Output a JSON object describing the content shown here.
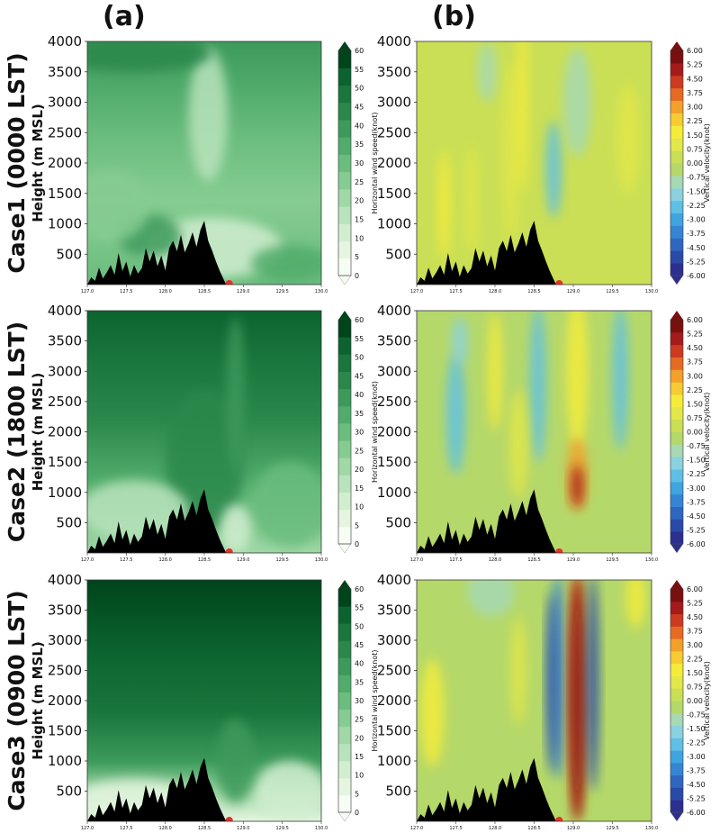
{
  "chart_data": {
    "type": "filled-contour",
    "panel_titles": [
      "(a)",
      "(b)"
    ],
    "row_labels": [
      "Case1 (0000 LST)",
      "Case2 (1800 LST)",
      "Case3 (0900 LST)"
    ],
    "ylabel": "Height (m MSL)",
    "yticks": [
      500,
      1000,
      1500,
      2000,
      2500,
      3000,
      3500,
      4000
    ],
    "ylim": [
      0,
      4000
    ],
    "xticks": [
      "127.0",
      "127.5",
      "128.0",
      "128.5",
      "129.0",
      "129.5",
      "130.0"
    ],
    "xlim": [
      127.0,
      130.0
    ],
    "colorbar_a": {
      "label": "Horizontal wind speed(knot)",
      "ticks": [
        "0",
        "5",
        "10",
        "15",
        "20",
        "25",
        "30",
        "35",
        "40",
        "45",
        "50",
        "55",
        "60"
      ]
    },
    "colorbar_b": {
      "label": "Vertical velocity(knot)",
      "ticks": [
        "-6.00",
        "-5.25",
        "-4.50",
        "-3.75",
        "-3.00",
        "-2.25",
        "-1.50",
        "-0.75",
        "0.00",
        "0.75",
        "1.50",
        "2.25",
        "3.00",
        "3.75",
        "4.50",
        "5.25",
        "6.00"
      ]
    },
    "colors": {
      "green_scale": [
        "#f7fcf5",
        "#e5f5e0",
        "#d1eed0",
        "#b9e3bc",
        "#a0d8a6",
        "#86cc92",
        "#6bbd7e",
        "#51ac6b",
        "#3c9a5b",
        "#2a884b",
        "#19763c",
        "#0b642f",
        "#00441b"
      ],
      "diverge_scale": [
        "#2c2f8f",
        "#2a4aa8",
        "#2e66c0",
        "#3585d4",
        "#3fa4e0",
        "#5fc0e6",
        "#8bd1df",
        "#a6d9b4",
        "#b5d86a",
        "#cadf55",
        "#e2e74a",
        "#f5ec3a",
        "#f6cc32",
        "#f3a02c",
        "#e56b24",
        "#cc3a22",
        "#a51a1a",
        "#7a0f0f"
      ],
      "terrain": "#000000",
      "marker": "#e8302b"
    },
    "terrain_profile": {
      "lon": [
        127.0,
        127.05,
        127.1,
        127.15,
        127.2,
        127.25,
        127.3,
        127.35,
        127.4,
        127.45,
        127.5,
        127.55,
        127.6,
        127.65,
        127.7,
        127.75,
        127.8,
        127.85,
        127.9,
        127.95,
        128.0,
        128.05,
        128.1,
        128.15,
        128.2,
        128.25,
        128.3,
        128.35,
        128.4,
        128.45,
        128.5,
        128.55,
        128.6,
        128.65,
        128.7,
        128.75,
        128.78
      ],
      "height": [
        0,
        120,
        60,
        280,
        100,
        200,
        320,
        160,
        520,
        220,
        380,
        130,
        320,
        180,
        270,
        600,
        380,
        560,
        300,
        480,
        230,
        600,
        720,
        550,
        820,
        530,
        680,
        860,
        620,
        900,
        1050,
        720,
        560,
        380,
        220,
        80,
        0
      ]
    },
    "marker_lon": 128.82
  }
}
